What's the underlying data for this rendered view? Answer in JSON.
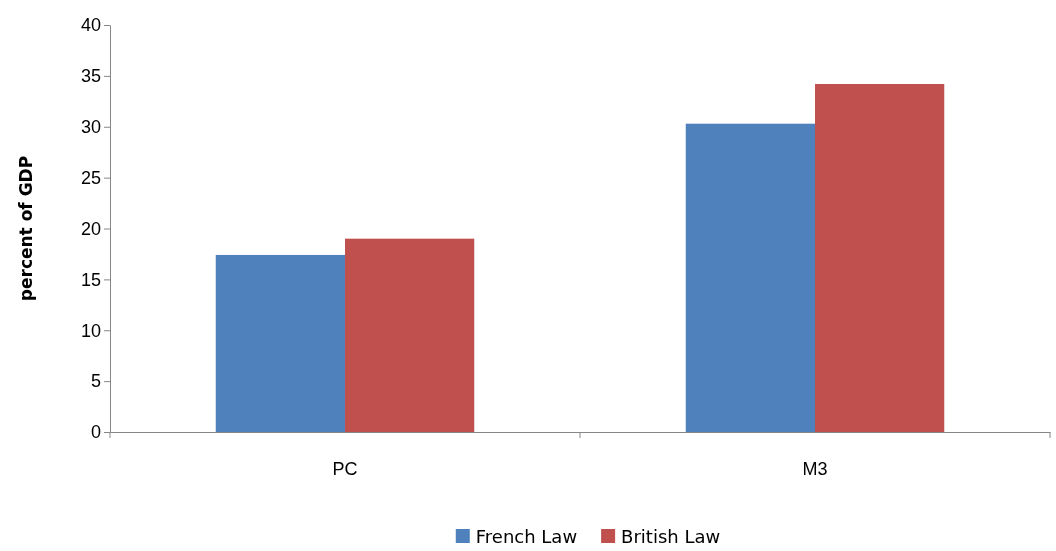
{
  "chart_data": {
    "type": "bar",
    "ylabel": "percent of GDP",
    "categories": [
      "PC",
      "M3"
    ],
    "series": [
      {
        "name": "French Law",
        "color": "#4f81bd",
        "values": [
          17.4,
          30.3
        ]
      },
      {
        "name": "British Law",
        "color": "#c0504d",
        "values": [
          19.0,
          34.2
        ]
      }
    ],
    "ylim": [
      0,
      40
    ],
    "yticks": [
      0,
      5,
      10,
      15,
      20,
      25,
      30,
      35,
      40
    ],
    "grid": false,
    "legend": "bottom"
  }
}
